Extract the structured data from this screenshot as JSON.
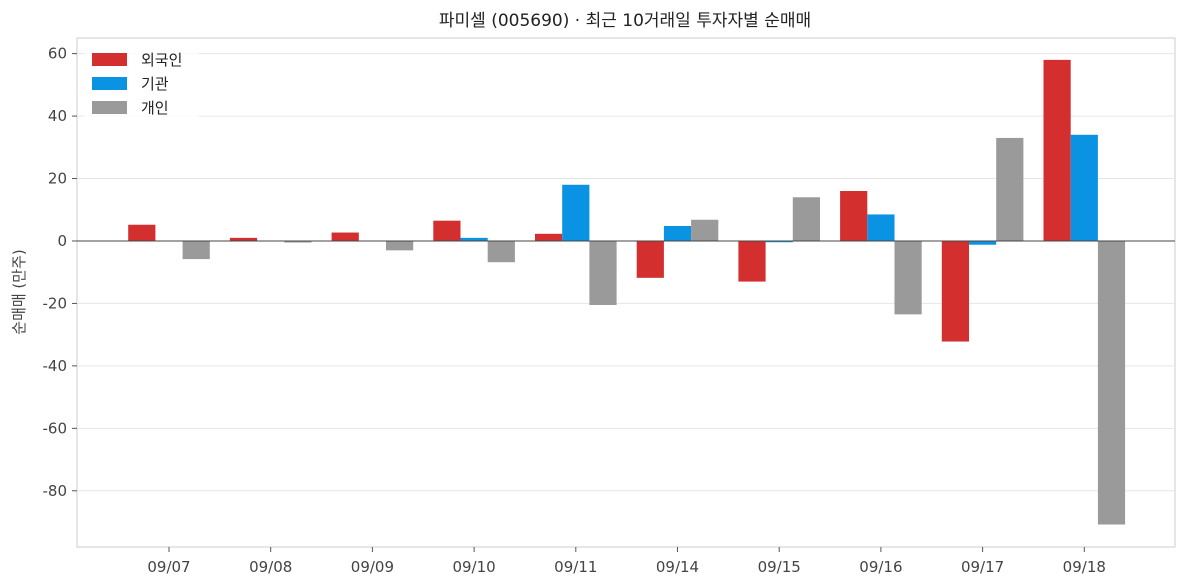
{
  "chart_data": {
    "type": "bar",
    "title": "파미셀 (005690) · 최근 10거래일 투자자별 순매매",
    "xlabel": "",
    "ylabel": "순매매 (만주)",
    "categories": [
      "09/07",
      "09/08",
      "09/09",
      "09/10",
      "09/11",
      "09/14",
      "09/15",
      "09/16",
      "09/17",
      "09/18"
    ],
    "series": [
      {
        "name": "외국인",
        "color": "#d32f2f",
        "values": [
          5.2,
          1.0,
          2.7,
          6.5,
          2.3,
          -11.8,
          -13.0,
          16.0,
          -32.2,
          58.0
        ]
      },
      {
        "name": "기관",
        "color": "#0a93e3",
        "values": [
          0.0,
          0.0,
          0.0,
          1.0,
          18.0,
          4.8,
          -0.4,
          8.5,
          -1.2,
          34.0
        ]
      },
      {
        "name": "개인",
        "color": "#9a9a9a",
        "values": [
          -5.8,
          -0.5,
          -3.0,
          -6.8,
          -20.5,
          6.8,
          14.0,
          -23.5,
          33.0,
          -90.8
        ]
      }
    ],
    "ylim": [
      -98,
      65
    ],
    "yticks": [
      60,
      40,
      20,
      0,
      -20,
      -40,
      -60,
      -80
    ],
    "grid": true,
    "legend_position": "top-left"
  }
}
